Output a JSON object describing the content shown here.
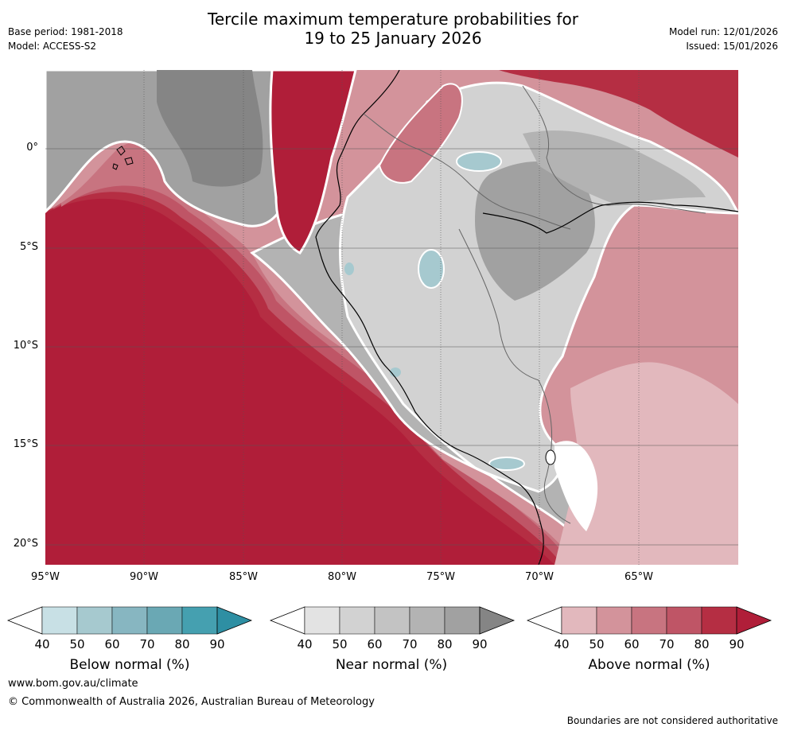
{
  "header": {
    "title_line1": "Tercile maximum temperature probabilities for",
    "title_line2": "19 to 25 January 2026",
    "base_period": "Base period: 1981-2018",
    "model": "Model: ACCESS-S2",
    "model_run": "Model run: 12/01/2026",
    "issued": "Issued: 15/01/2026"
  },
  "map": {
    "region": "Western South America",
    "lat_labels": [
      "0°",
      "5°S",
      "10°S",
      "15°S",
      "20°S"
    ],
    "lon_labels": [
      "95°W",
      "90°W",
      "85°W",
      "80°W",
      "75°W",
      "70°W",
      "65°W"
    ]
  },
  "colorbars": [
    {
      "label": "Below normal (%)",
      "ticks": [
        "40",
        "50",
        "60",
        "70",
        "80",
        "90"
      ],
      "colors": [
        "#ffffff",
        "#c8e0e5",
        "#a6c9cf",
        "#87b6c1",
        "#6aa8b4",
        "#45a0b0",
        "#2e8fa3"
      ]
    },
    {
      "label": "Near normal (%)",
      "ticks": [
        "40",
        "50",
        "60",
        "70",
        "80",
        "90"
      ],
      "colors": [
        "#ffffff",
        "#e3e3e3",
        "#d2d2d2",
        "#c3c3c3",
        "#b3b3b3",
        "#a1a1a1",
        "#858585"
      ]
    },
    {
      "label": "Above normal (%)",
      "ticks": [
        "40",
        "50",
        "60",
        "70",
        "80",
        "90"
      ],
      "colors": [
        "#ffffff",
        "#e2b8bd",
        "#d3939b",
        "#c87480",
        "#bf5566",
        "#b52e43",
        "#b01e39"
      ]
    }
  ],
  "footer": {
    "url": "www.bom.gov.au/climate",
    "copyright": "© Commonwealth of Australia 2026, Australian Bureau of Meteorology",
    "disclaimer": "Boundaries are not considered authoritative"
  }
}
